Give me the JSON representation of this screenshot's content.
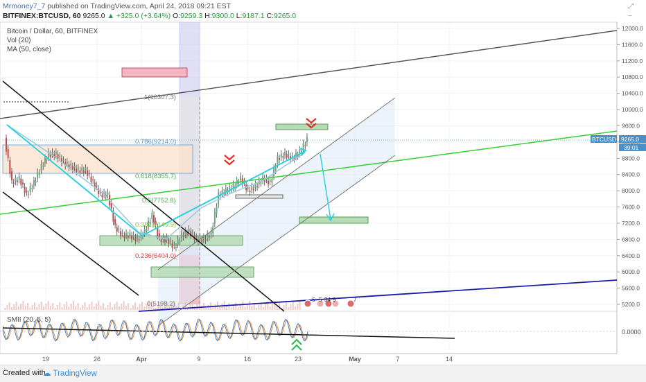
{
  "header": {
    "author": "Mrmoney7_7",
    "published": "published on TradingView.com, April 24, 2018 09:21 EST",
    "symbol_line": "BITFINEX:BTCUSD, 60",
    "last": "9265.0",
    "change": "▲ +325.0 (+3.64%)",
    "o_label": "O:",
    "o": "9259.3",
    "h_label": "H:",
    "h": "9300.0",
    "l_label": "L:",
    "l": "9187.1",
    "c_label": "C:",
    "c": "9265.0"
  },
  "legend": {
    "title": "Bitcoin / Dollar, 60, BITFINEX",
    "vol": "Vol (20)",
    "ma": "MA (50, close)"
  },
  "price_tag": {
    "symbol": "BTCUSD",
    "price": "9265.0",
    "countdown": "39:01"
  },
  "fib_labels": [
    "1(10307.3)",
    "0.786(9214.0)",
    "0.618(8355.7)",
    "0.5(7752.8)",
    "0.382(7149.9)",
    "0.236(6404.0)",
    "0(5198.2)"
  ],
  "oscillator": {
    "title": "SMII (20, 5, 5)",
    "value_label": "0.0000"
  },
  "event_labels": [
    "6",
    "5",
    "34",
    "9",
    "7"
  ],
  "footer": {
    "created": "Created with",
    "brand": "TradingView"
  },
  "colors": {
    "up_arrow": "#2fbf4a",
    "down_arrow": "#e0302a",
    "fib_blue": "#5b9bd5",
    "fib_red": "#e04040",
    "cyan": "#2fd0e0",
    "green_line": "#3ad03a",
    "blue_line": "#1a1aa8",
    "channel_fill": "#dce9f7"
  },
  "chart_data": {
    "type": "line",
    "title": "Bitcoin / Dollar, 60, BITFINEX",
    "xlabel": "",
    "ylabel": "",
    "x_ticks": [
      "19",
      "26",
      "Apr",
      "9",
      "16",
      "23",
      "May",
      "7",
      "14"
    ],
    "y_ticks": [
      5200,
      5600,
      6000,
      6400,
      6800,
      7200,
      7600,
      8000,
      8400,
      8800,
      9200,
      9600,
      10000,
      10400,
      10800,
      11200,
      11600,
      12000
    ],
    "ylim": [
      5050,
      12100
    ],
    "series": [
      {
        "x": [
          "Mar 14",
          "Mar 15",
          "Mar 16",
          "Mar 17",
          "Mar 18",
          "Mar 19",
          "Mar 20",
          "Mar 21",
          "Mar 22",
          "Mar 23",
          "Mar 24",
          "Mar 25",
          "Mar 26",
          "Mar 27",
          "Mar 28",
          "Mar 29",
          "Mar 30",
          "Mar 31",
          "Apr 1",
          "Apr 2",
          "Apr 3",
          "Apr 4",
          "Apr 5",
          "Apr 6",
          "Apr 7",
          "Apr 8",
          "Apr 9",
          "Apr 10",
          "Apr 11",
          "Apr 12",
          "Apr 13",
          "Apr 14",
          "Apr 15",
          "Apr 16",
          "Apr 17",
          "Apr 18",
          "Apr 19",
          "Apr 20",
          "Apr 21",
          "Apr 22",
          "Apr 23",
          "Apr 24"
        ],
        "values": [
          9300,
          8200,
          8300,
          7900,
          8200,
          8600,
          8900,
          8900,
          8700,
          8600,
          8500,
          8500,
          8200,
          7900,
          7900,
          7100,
          6900,
          6900,
          6800,
          7000,
          7400,
          6800,
          6800,
          6600,
          6900,
          7000,
          6800,
          6800,
          6950,
          7900,
          8000,
          8100,
          8300,
          8000,
          8100,
          8300,
          8200,
          8800,
          8900,
          8800,
          8950,
          9265
        ]
      }
    ],
    "oscillator": {
      "name": "SMII (20, 5, 5)",
      "reference": 0.0
    },
    "grid": true
  }
}
